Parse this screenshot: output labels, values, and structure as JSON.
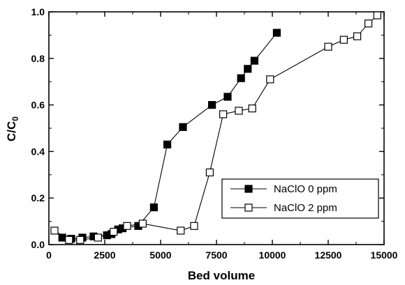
{
  "chart_data": {
    "type": "line",
    "xlabel": "Bed volume",
    "ylabel": "C/C",
    "ylabel_sub": "0",
    "xlim": [
      0,
      15000
    ],
    "ylim": [
      0,
      1.0
    ],
    "xticks": [
      0,
      2500,
      5000,
      7500,
      10000,
      12500,
      15000
    ],
    "yticks": [
      0.0,
      0.2,
      0.4,
      0.6,
      0.8,
      1.0
    ],
    "xtick_labels": [
      "0",
      "2500",
      "5000",
      "7500",
      "10000",
      "12500",
      "15000"
    ],
    "ytick_labels": [
      "0.0",
      "0.2",
      "0.4",
      "0.6",
      "0.8",
      "1.0"
    ],
    "grid": false,
    "legend_position": "bottom-right",
    "series": [
      {
        "name": "NaClO 0 ppm",
        "marker": "filled-square",
        "x": [
          600,
          1000,
          1500,
          2000,
          2600,
          2800,
          3100,
          3300,
          4000,
          4700,
          5300,
          6000,
          7300,
          8000,
          8600,
          8900,
          9200,
          10200
        ],
        "y": [
          0.03,
          0.025,
          0.03,
          0.035,
          0.04,
          0.045,
          0.065,
          0.07,
          0.08,
          0.16,
          0.43,
          0.505,
          0.6,
          0.635,
          0.715,
          0.755,
          0.79,
          0.91
        ]
      },
      {
        "name": "NaClO 2 ppm",
        "marker": "open-square",
        "x": [
          250,
          900,
          1400,
          2200,
          2900,
          3500,
          4200,
          5900,
          6500,
          7200,
          7800,
          8500,
          9100,
          9900,
          12500,
          13200,
          13800,
          14300,
          14700
        ],
        "y": [
          0.06,
          0.02,
          0.02,
          0.03,
          0.055,
          0.08,
          0.09,
          0.06,
          0.08,
          0.31,
          0.56,
          0.575,
          0.585,
          0.71,
          0.85,
          0.88,
          0.895,
          0.95,
          0.985
        ]
      }
    ]
  }
}
